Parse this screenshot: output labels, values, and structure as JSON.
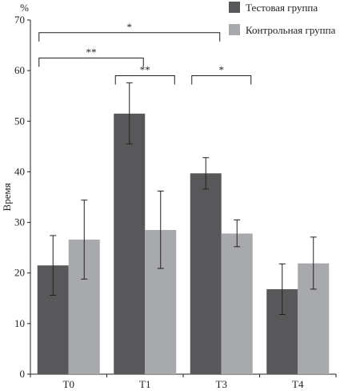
{
  "chart_data": {
    "type": "bar",
    "title": "",
    "xlabel": "",
    "ylabel": "Время",
    "y_unit": "%",
    "ylim": [
      0,
      70
    ],
    "yticks": [
      0,
      10,
      20,
      30,
      40,
      50,
      60,
      70
    ],
    "grid": false,
    "legend_position": "top-right",
    "categories": [
      "T0",
      "T1",
      "T3",
      "T4"
    ],
    "series": [
      {
        "name": "Тестовая группа",
        "color": "#58585a",
        "values": [
          21.5,
          51.5,
          39.7,
          16.8
        ],
        "error_low": [
          15.6,
          45.5,
          36.6,
          11.8
        ],
        "error_high": [
          27.4,
          57.6,
          42.8,
          21.8
        ]
      },
      {
        "name": "Контрольная группа",
        "color": "#a7a9ac",
        "values": [
          26.6,
          28.5,
          27.8,
          21.9
        ],
        "error_low": [
          18.8,
          20.9,
          25.2,
          16.8
        ],
        "error_high": [
          34.4,
          36.2,
          30.5,
          27.1
        ]
      }
    ],
    "significance": [
      {
        "from": "T0 Тестовая группа",
        "to": "T3 Тестовая группа",
        "label": "*",
        "level": 67.5
      },
      {
        "from": "T0 Тестовая группа",
        "to": "T1 Тестовая группа",
        "label": "**",
        "level": 62.5
      },
      {
        "from": "T1 Тестовая группа",
        "to": "T1 Контрольная группа",
        "label": "**",
        "level": 59.0
      },
      {
        "from": "T3 Тестовая группа",
        "to": "T3 Контрольная группа",
        "label": "*",
        "level": 59.0
      }
    ]
  }
}
